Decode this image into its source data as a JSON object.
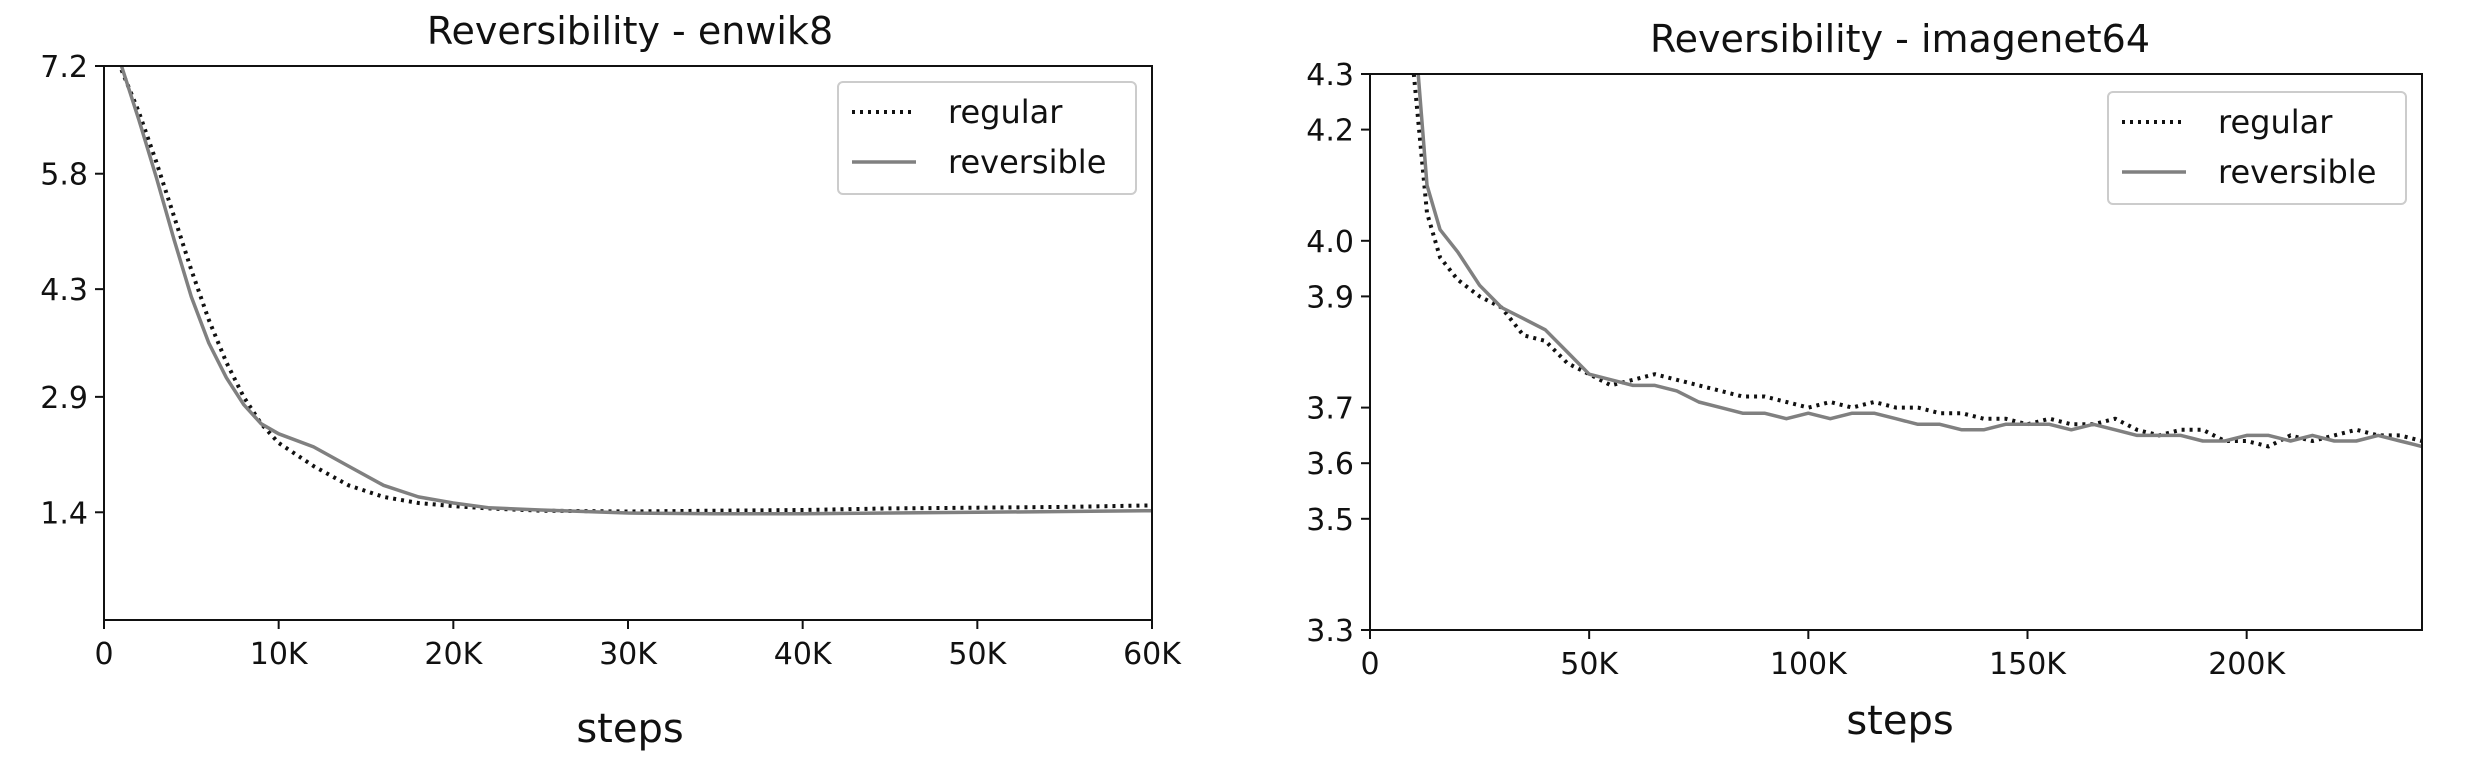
{
  "chart_data": [
    {
      "type": "line",
      "title": "Reversibility - enwik8",
      "xlabel": "steps",
      "ylabel": "",
      "xlim": [
        0,
        60000
      ],
      "ylim": [
        0.0,
        7.2
      ],
      "xticks": [
        0,
        10000,
        20000,
        30000,
        40000,
        50000,
        60000
      ],
      "xtick_labels": [
        "0",
        "10K",
        "20K",
        "30K",
        "40K",
        "50K",
        "60K"
      ],
      "yticks": [
        1.4,
        2.9,
        4.3,
        5.8,
        7.2
      ],
      "ytick_labels": [
        "1.4",
        "2.9",
        "4.3",
        "5.8",
        "7.2"
      ],
      "grid": false,
      "legend_position": "top-right",
      "series": [
        {
          "name": "regular",
          "style": "dotted",
          "color": "#111111",
          "x": [
            1000,
            2000,
            3000,
            4000,
            5000,
            6000,
            7000,
            8000,
            9000,
            10000,
            12000,
            14000,
            16000,
            18000,
            20000,
            22000,
            25000,
            30000,
            35000,
            40000,
            45000,
            50000,
            55000,
            60000
          ],
          "y": [
            7.15,
            6.6,
            5.95,
            5.25,
            4.55,
            3.9,
            3.35,
            2.9,
            2.55,
            2.3,
            2.0,
            1.75,
            1.6,
            1.52,
            1.48,
            1.45,
            1.42,
            1.41,
            1.42,
            1.43,
            1.45,
            1.46,
            1.47,
            1.49
          ]
        },
        {
          "name": "reversible",
          "style": "solid",
          "color": "#808080",
          "x": [
            1000,
            2000,
            3000,
            4000,
            5000,
            6000,
            7000,
            8000,
            9000,
            10000,
            12000,
            14000,
            16000,
            18000,
            20000,
            22000,
            25000,
            30000,
            35000,
            40000,
            45000,
            50000,
            55000,
            60000
          ],
          "y": [
            7.2,
            6.5,
            5.75,
            4.95,
            4.2,
            3.6,
            3.15,
            2.8,
            2.55,
            2.42,
            2.25,
            2.0,
            1.75,
            1.6,
            1.52,
            1.46,
            1.43,
            1.39,
            1.38,
            1.38,
            1.39,
            1.4,
            1.41,
            1.42
          ]
        }
      ]
    },
    {
      "type": "line",
      "title": "Reversibility - imagenet64",
      "xlabel": "steps",
      "ylabel": "",
      "xlim": [
        0,
        240000
      ],
      "ylim": [
        3.3,
        4.3
      ],
      "xticks": [
        0,
        50000,
        100000,
        150000,
        200000
      ],
      "xtick_labels": [
        "0",
        "50K",
        "100K",
        "150K",
        "200K"
      ],
      "yticks": [
        3.3,
        3.5,
        3.6,
        3.7,
        3.9,
        4.0,
        4.2,
        4.3
      ],
      "ytick_labels": [
        "3.3",
        "3.5",
        "3.6",
        "3.7",
        "3.9",
        "4.0",
        "4.2",
        "4.3"
      ],
      "grid": false,
      "legend_position": "top-right",
      "series": [
        {
          "name": "regular",
          "style": "dotted",
          "color": "#111111",
          "x": [
            10000,
            13000,
            16000,
            20000,
            25000,
            30000,
            35000,
            40000,
            45000,
            50000,
            55000,
            60000,
            65000,
            70000,
            75000,
            80000,
            85000,
            90000,
            95000,
            100000,
            105000,
            110000,
            115000,
            120000,
            125000,
            130000,
            135000,
            140000,
            145000,
            150000,
            155000,
            160000,
            165000,
            170000,
            175000,
            180000,
            185000,
            190000,
            195000,
            200000,
            205000,
            210000,
            215000,
            220000,
            225000,
            230000,
            235000,
            240000
          ],
          "y": [
            4.3,
            4.05,
            3.97,
            3.93,
            3.9,
            3.88,
            3.83,
            3.82,
            3.78,
            3.76,
            3.74,
            3.75,
            3.76,
            3.75,
            3.74,
            3.73,
            3.72,
            3.72,
            3.71,
            3.7,
            3.71,
            3.7,
            3.71,
            3.7,
            3.7,
            3.69,
            3.69,
            3.68,
            3.68,
            3.67,
            3.68,
            3.67,
            3.67,
            3.68,
            3.66,
            3.65,
            3.66,
            3.66,
            3.64,
            3.64,
            3.63,
            3.65,
            3.64,
            3.65,
            3.66,
            3.65,
            3.65,
            3.64
          ]
        },
        {
          "name": "reversible",
          "style": "solid",
          "color": "#808080",
          "x": [
            11000,
            13000,
            16000,
            20000,
            25000,
            30000,
            35000,
            40000,
            45000,
            50000,
            55000,
            60000,
            65000,
            70000,
            75000,
            80000,
            85000,
            90000,
            95000,
            100000,
            105000,
            110000,
            115000,
            120000,
            125000,
            130000,
            135000,
            140000,
            145000,
            150000,
            155000,
            160000,
            165000,
            170000,
            175000,
            180000,
            185000,
            190000,
            195000,
            200000,
            205000,
            210000,
            215000,
            220000,
            225000,
            230000,
            235000,
            240000
          ],
          "y": [
            4.3,
            4.1,
            4.02,
            3.98,
            3.92,
            3.88,
            3.86,
            3.84,
            3.8,
            3.76,
            3.75,
            3.74,
            3.74,
            3.73,
            3.71,
            3.7,
            3.69,
            3.69,
            3.68,
            3.69,
            3.68,
            3.69,
            3.69,
            3.68,
            3.67,
            3.67,
            3.66,
            3.66,
            3.67,
            3.67,
            3.67,
            3.66,
            3.67,
            3.66,
            3.65,
            3.65,
            3.65,
            3.64,
            3.64,
            3.65,
            3.65,
            3.64,
            3.65,
            3.64,
            3.64,
            3.65,
            3.64,
            3.63
          ]
        }
      ]
    }
  ]
}
